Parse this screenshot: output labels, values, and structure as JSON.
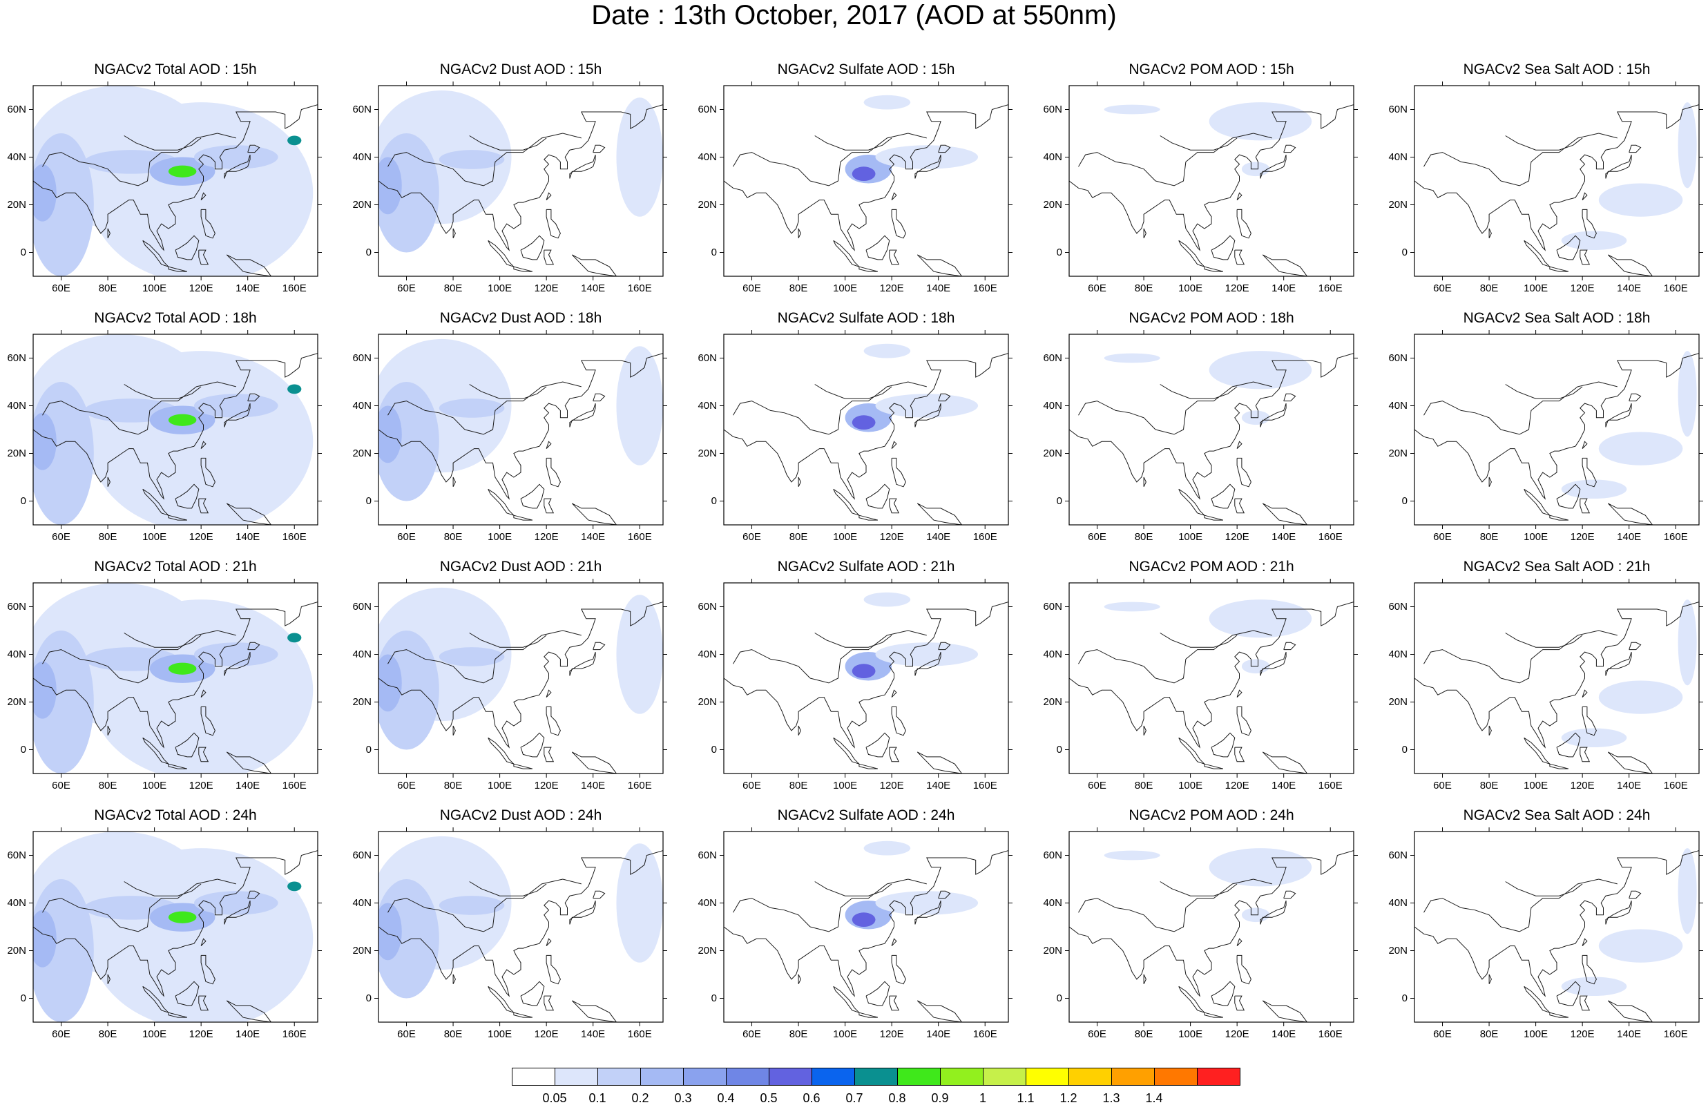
{
  "title": "Date : 13th October, 2017 (AOD at 550nm)",
  "hours": [
    "15h",
    "18h",
    "21h",
    "24h"
  ],
  "x_tick_labels": [
    "60E",
    "80E",
    "100E",
    "120E",
    "140E",
    "160E"
  ],
  "x_tick_values": [
    60,
    80,
    100,
    120,
    140,
    160
  ],
  "y_tick_labels": [
    "60N",
    "40N",
    "20N",
    "0"
  ],
  "y_tick_values": [
    60,
    40,
    20,
    0
  ],
  "lon_range": [
    48,
    170
  ],
  "lat_range": [
    -10,
    70
  ],
  "panel_titles": [
    [
      "NGACv2 Total AOD : 15h",
      "NGACv2 Dust AOD : 15h",
      "NGACv2 Sulfate AOD : 15h",
      "NGACv2 POM AOD : 15h",
      "NGACv2 Sea Salt AOD : 15h"
    ],
    [
      "NGACv2 Total AOD : 18h",
      "NGACv2 Dust AOD : 18h",
      "NGACv2 Sulfate AOD : 18h",
      "NGACv2 POM AOD : 18h",
      "NGACv2 Sea Salt AOD : 18h"
    ],
    [
      "NGACv2 Total AOD : 21h",
      "NGACv2 Dust AOD : 21h",
      "NGACv2 Sulfate AOD : 21h",
      "NGACv2 POM AOD : 21h",
      "NGACv2 Sea Salt AOD : 21h"
    ],
    [
      "NGACv2 Total AOD : 24h",
      "NGACv2 Dust AOD : 24h",
      "NGACv2 Sulfate AOD : 24h",
      "NGACv2 POM AOD : 24h",
      "NGACv2 Sea Salt  AOD : 24h"
    ]
  ],
  "colorbar": {
    "labels": [
      "0.05",
      "0.1",
      "0.2",
      "0.3",
      "0.4",
      "0.5",
      "0.6",
      "0.7",
      "0.8",
      "0.9",
      "1",
      "1.1",
      "1.2",
      "1.3",
      "1.4"
    ],
    "colors": [
      "#ffffff",
      "#dde6fb",
      "#c2d1f8",
      "#a5baf4",
      "#8aa2ee",
      "#6f86e6",
      "#6262e0",
      "#0a64ee",
      "#0a9090",
      "#3fe81b",
      "#92f01e",
      "#c6f04a",
      "#ffff00",
      "#ffd000",
      "#ffa000",
      "#ff7800",
      "#ff2020"
    ]
  },
  "fields": {
    "total": [
      {
        "lon": 85,
        "lat": 40,
        "rx": 40,
        "ry": 30,
        "level": 1
      },
      {
        "lon": 120,
        "lat": 25,
        "rx": 48,
        "ry": 38,
        "level": 1
      },
      {
        "lon": 60,
        "lat": 20,
        "rx": 14,
        "ry": 30,
        "level": 2
      },
      {
        "lon": 52,
        "lat": 25,
        "rx": 6,
        "ry": 12,
        "level": 3
      },
      {
        "lon": 90,
        "lat": 38,
        "rx": 20,
        "ry": 5,
        "level": 2
      },
      {
        "lon": 112,
        "lat": 34,
        "rx": 14,
        "ry": 6,
        "level": 3
      },
      {
        "lon": 135,
        "lat": 40,
        "rx": 18,
        "ry": 5,
        "level": 2
      },
      {
        "lon": 112,
        "lat": 34,
        "rx": 6,
        "ry": 2.5,
        "level": 9
      },
      {
        "lon": 160,
        "lat": 47,
        "rx": 3,
        "ry": 2,
        "level": 8
      }
    ],
    "dust": [
      {
        "lon": 75,
        "lat": 40,
        "rx": 30,
        "ry": 28,
        "level": 1
      },
      {
        "lon": 60,
        "lat": 25,
        "rx": 14,
        "ry": 25,
        "level": 2
      },
      {
        "lon": 52,
        "lat": 28,
        "rx": 6,
        "ry": 12,
        "level": 3
      },
      {
        "lon": 88,
        "lat": 39,
        "rx": 14,
        "ry": 4,
        "level": 2
      },
      {
        "lon": 160,
        "lat": 40,
        "rx": 10,
        "ry": 25,
        "level": 1
      }
    ],
    "sulfate": [
      {
        "lon": 110,
        "lat": 35,
        "rx": 10,
        "ry": 6,
        "level": 3
      },
      {
        "lon": 108,
        "lat": 33,
        "rx": 5,
        "ry": 3,
        "level": 6
      },
      {
        "lon": 135,
        "lat": 40,
        "rx": 22,
        "ry": 5,
        "level": 1
      },
      {
        "lon": 118,
        "lat": 63,
        "rx": 10,
        "ry": 3,
        "level": 1
      }
    ],
    "pom": [
      {
        "lon": 130,
        "lat": 55,
        "rx": 22,
        "ry": 8,
        "level": 1
      },
      {
        "lon": 75,
        "lat": 60,
        "rx": 12,
        "ry": 2,
        "level": 1
      },
      {
        "lon": 128,
        "lat": 35,
        "rx": 6,
        "ry": 3,
        "level": 1
      }
    ],
    "seasalt": [
      {
        "lon": 145,
        "lat": 22,
        "rx": 18,
        "ry": 7,
        "level": 1
      },
      {
        "lon": 165,
        "lat": 45,
        "rx": 4,
        "ry": 18,
        "level": 1
      },
      {
        "lon": 125,
        "lat": 5,
        "rx": 14,
        "ry": 4,
        "level": 1
      }
    ]
  }
}
